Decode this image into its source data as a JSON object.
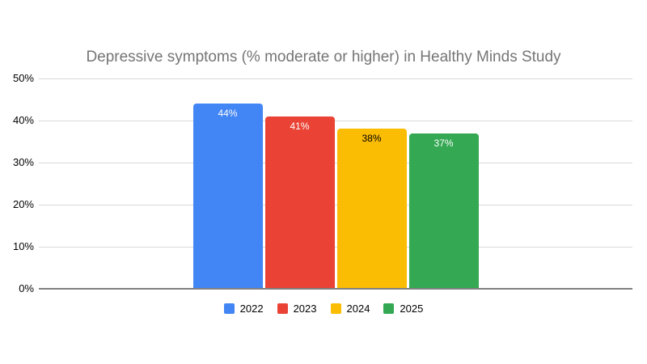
{
  "chart_data": {
    "type": "bar",
    "title": "Depressive symptoms (% moderate or higher) in Healthy Minds Study",
    "categories": [
      "2022",
      "2023",
      "2024",
      "2025"
    ],
    "series": [
      {
        "name": "2022",
        "value": 44,
        "label": "44%",
        "color": "#4285f4",
        "label_color": "#ffffff"
      },
      {
        "name": "2023",
        "value": 41,
        "label": "41%",
        "color": "#ea4335",
        "label_color": "#ffffff"
      },
      {
        "name": "2024",
        "value": 38,
        "label": "38%",
        "color": "#fbbc04",
        "label_color": "#000000"
      },
      {
        "name": "2025",
        "value": 37,
        "label": "37%",
        "color": "#34a853",
        "label_color": "#ffffff"
      }
    ],
    "xlabel": "",
    "ylabel": "",
    "ylim": [
      0,
      50
    ],
    "yticks": [
      "0%",
      "10%",
      "20%",
      "30%",
      "40%",
      "50%"
    ],
    "ytick_values": [
      0,
      10,
      20,
      30,
      40,
      50
    ],
    "grid": true,
    "data_labels_shown": true,
    "legend_position": "bottom",
    "style_colors": {
      "title_text": "#757575",
      "axis_text": "#000000",
      "gridline": "#d9d9d9",
      "baseline": "#808080",
      "background": "#ffffff"
    }
  }
}
